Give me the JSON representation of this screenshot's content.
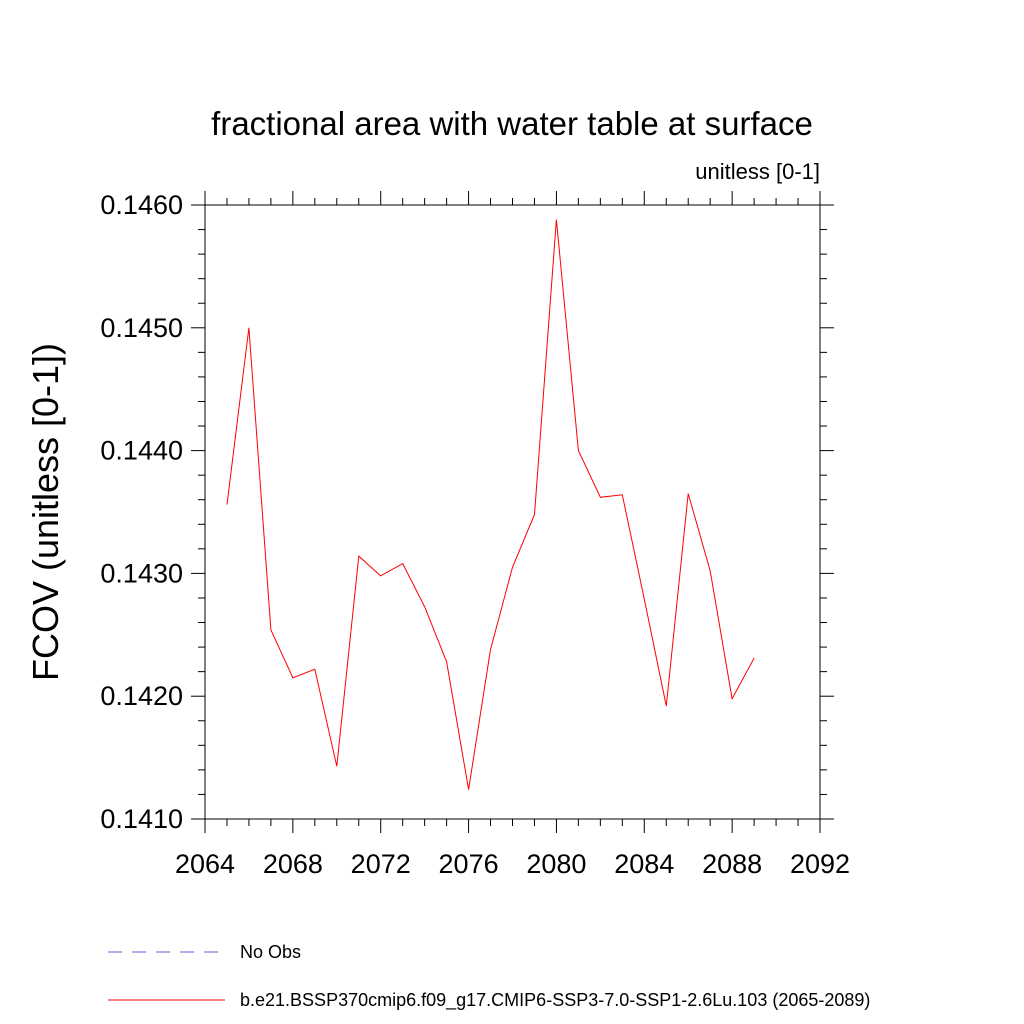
{
  "chart_data": {
    "type": "line",
    "title": "fractional area with water table at surface",
    "subtitle": "unitless [0-1]",
    "xlabel": "",
    "ylabel": "FCOV  (unitless [0-1])",
    "xlim": [
      2064,
      2092
    ],
    "ylim": [
      0.141,
      0.146
    ],
    "x_ticks": [
      2064,
      2068,
      2072,
      2076,
      2080,
      2084,
      2088,
      2092
    ],
    "x_tick_labels": [
      "2064",
      "2068",
      "2072",
      "2076",
      "2080",
      "2084",
      "2088",
      "2092"
    ],
    "y_ticks": [
      0.141,
      0.142,
      0.143,
      0.144,
      0.145,
      0.146
    ],
    "y_tick_labels": [
      "0.1410",
      "0.1420",
      "0.1430",
      "0.1440",
      "0.1450",
      "0.1460"
    ],
    "grid": false,
    "legend_position": "bottom",
    "series": [
      {
        "name": "No Obs",
        "color": "#6a5acd",
        "dash": "dashed",
        "x": [],
        "y": []
      },
      {
        "name": "b.e21.BSSP370cmip6.f09_g17.CMIP6-SSP3-7.0-SSP1-2.6Lu.103 (2065-2089)",
        "color": "#ff0000",
        "dash": "solid",
        "x": [
          2065,
          2066,
          2067,
          2068,
          2069,
          2070,
          2071,
          2072,
          2073,
          2074,
          2075,
          2076,
          2077,
          2078,
          2079,
          2080,
          2081,
          2082,
          2083,
          2084,
          2085,
          2086,
          2087,
          2088,
          2089
        ],
        "y": [
          0.14356,
          0.145,
          0.14254,
          0.14215,
          0.14222,
          0.14143,
          0.14314,
          0.14298,
          0.14308,
          0.14273,
          0.14228,
          0.14124,
          0.14238,
          0.14305,
          0.14348,
          0.14588,
          0.144,
          0.14362,
          0.14364,
          0.14279,
          0.14192,
          0.14365,
          0.14302,
          0.14198,
          0.14231
        ]
      }
    ]
  }
}
